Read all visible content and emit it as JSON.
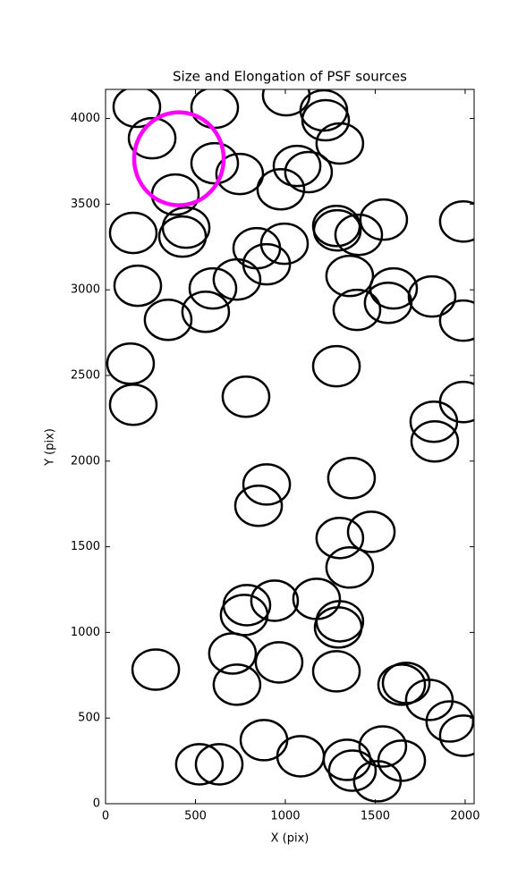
{
  "chart_data": {
    "type": "scatter",
    "title": "Size and Elongation of PSF sources",
    "x_label": "X (pix)",
    "y_label": "Y (pix)",
    "xlim": [
      0,
      2050
    ],
    "ylim": [
      0,
      4170
    ],
    "xticks": [
      0,
      500,
      1000,
      1500,
      2000
    ],
    "yticks": [
      0,
      500,
      1000,
      1500,
      2000,
      2500,
      3000,
      3500,
      4000
    ],
    "series": [
      {
        "color": "#000000",
        "marker_size": [
          259,
          235
        ],
        "x": [
          174,
          607,
          1005,
          1214,
          1224,
          259,
          607,
          746,
          1065,
          1129,
          1303,
          388,
          975,
          448,
          428,
          154,
          1284,
          1289,
          1408,
          1547,
          1990,
          841,
          995,
          896,
          731,
          597,
          179,
          348,
          557,
          1358,
          1602,
          1572,
          1816,
          1398,
          1990,
          139,
          154,
          1284,
          781,
          1990,
          1826,
          1831,
          896,
          851,
          1368,
          1478,
          1303,
          1358,
          786,
          771,
          940,
          1174,
          1303,
          1294,
          706,
          965,
          731,
          1284,
          279,
          1647,
          1672,
          1801,
          1915,
          1990,
          881,
          1085,
          522,
          632,
          1343,
          1373,
          1542,
          1512,
          1647
        ],
        "values": [
          4068,
          4063,
          4136,
          4047,
          3990,
          3885,
          3739,
          3676,
          3723,
          3687,
          3854,
          3556,
          3587,
          3363,
          3311,
          3332,
          3373,
          3347,
          3321,
          3410,
          3399,
          3243,
          3269,
          3149,
          3060,
          3008,
          3024,
          2825,
          2872,
          3081,
          3008,
          2924,
          2961,
          2883,
          2820,
          2569,
          2329,
          2554,
          2376,
          2345,
          2230,
          2115,
          1864,
          1739,
          1901,
          1587,
          1551,
          1379,
          1159,
          1102,
          1185,
          1196,
          1065,
          1029,
          877,
          825,
          695,
          773,
          783,
          695,
          705,
          606,
          480,
          397,
          371,
          277,
          230,
          230,
          256,
          193,
          334,
          131,
          251
        ]
      },
      {
        "color": "#ff00ff",
        "marker_size": [
          498,
          543
        ],
        "x": [
          408
        ],
        "values": [
          3765
        ]
      }
    ]
  }
}
